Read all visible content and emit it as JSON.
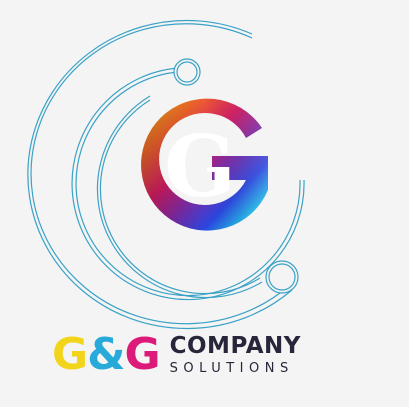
{
  "brand": {
    "initial_1": "G",
    "ampersand": "&",
    "initial_2": "G",
    "company": "COMPANY",
    "solutions": "SOLUTIONS"
  },
  "colors": {
    "background": "#f4f4f4",
    "initial_1": "#f2d51a",
    "ampersand": "#27a9d9",
    "initial_2": "#dc1a7a",
    "wordmark_text": "#27263a",
    "orbit_lines": "#3aa2c6",
    "emblem_gradient": [
      "#f9c10f",
      "#f0662a",
      "#d31c64",
      "#7d2ba6",
      "#2b45e0",
      "#1fb8e6",
      "#2be0b0"
    ]
  },
  "icons": {
    "emblem": "rainbow-g-emblem-icon",
    "orbits": "orbit-rings-icon"
  }
}
